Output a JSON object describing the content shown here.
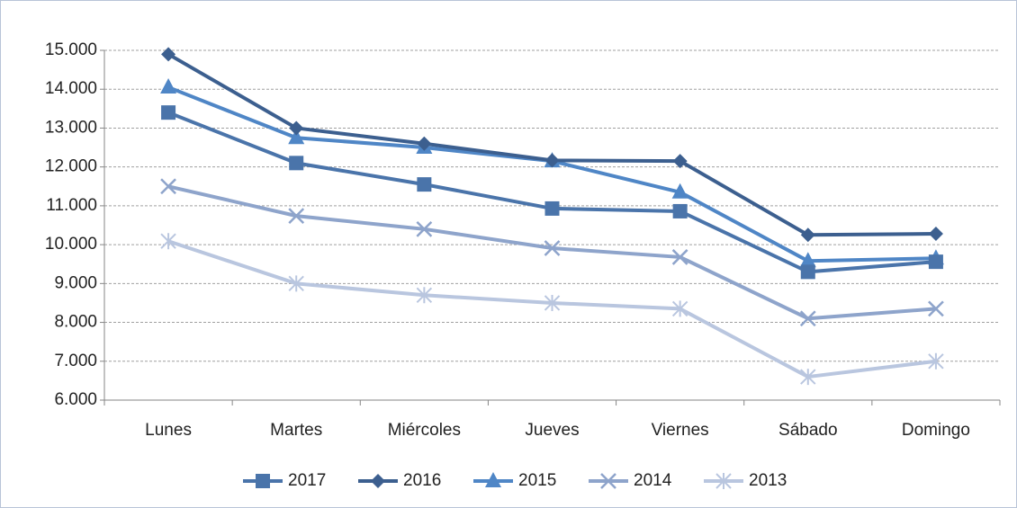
{
  "chart_data": {
    "type": "line",
    "categories": [
      "Lunes",
      "Martes",
      "Miércoles",
      "Jueves",
      "Viernes",
      "Sábado",
      "Domingo"
    ],
    "series": [
      {
        "name": "2017",
        "color": "#4a74aa",
        "marker": "square",
        "values": [
          13400,
          12100,
          11550,
          10930,
          10860,
          9300,
          9560
        ]
      },
      {
        "name": "2016",
        "color": "#3c5f8f",
        "marker": "diamond",
        "values": [
          14900,
          13000,
          12600,
          12170,
          12150,
          10250,
          10280
        ]
      },
      {
        "name": "2015",
        "color": "#4f86c6",
        "marker": "triangle",
        "values": [
          14050,
          12750,
          12500,
          12150,
          11350,
          9580,
          9650
        ]
      },
      {
        "name": "2014",
        "color": "#8ea4cb",
        "marker": "x",
        "values": [
          11500,
          10740,
          10400,
          9910,
          9680,
          8100,
          8350
        ]
      },
      {
        "name": "2013",
        "color": "#b9c6df",
        "marker": "star",
        "values": [
          10090,
          9000,
          8700,
          8500,
          8350,
          6600,
          7000
        ]
      }
    ],
    "ylim": [
      6000,
      15000
    ],
    "yticks": [
      {
        "value": 6000,
        "label": "6.000"
      },
      {
        "value": 7000,
        "label": "7.000"
      },
      {
        "value": 8000,
        "label": "8.000"
      },
      {
        "value": 9000,
        "label": "9.000"
      },
      {
        "value": 10000,
        "label": "10.000"
      },
      {
        "value": 11000,
        "label": "11.000"
      },
      {
        "value": 12000,
        "label": "12.000"
      },
      {
        "value": 13000,
        "label": "13.000"
      },
      {
        "value": 14000,
        "label": "14.000"
      },
      {
        "value": 15000,
        "label": "15.000"
      }
    ],
    "grid": true,
    "legend": "bottom"
  }
}
